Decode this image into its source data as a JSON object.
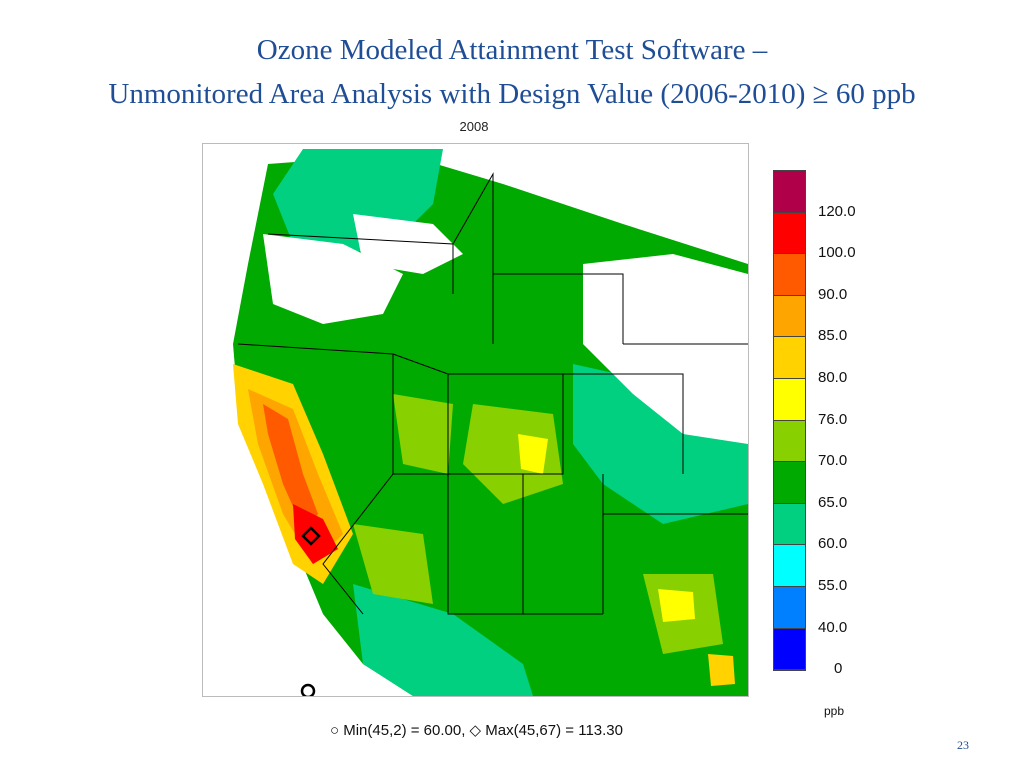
{
  "slide": {
    "title_line1": "Ozone Modeled Attainment Test Software –",
    "title_line2": "Unmonitored Area Analysis with Design Value (2006-2010) ≥ 60 ppb",
    "page_number": "23"
  },
  "map": {
    "year_label": "2008",
    "region": "Western United States",
    "min_max_text": "○ Min(45,2) = 60.00,  ◇ Max(45,67) = 113.30",
    "min_marker_icon": "circle-outline-icon",
    "max_marker_icon": "diamond-outline-icon"
  },
  "legend": {
    "unit": "ppb",
    "labels": [
      "120.0",
      "100.0",
      "90.0",
      "85.0",
      "80.0",
      "76.0",
      "70.0",
      "65.0",
      "60.0",
      "55.0",
      "40.0",
      "0"
    ],
    "colors": [
      "#b0004a",
      "#ff0000",
      "#ff5a00",
      "#ffa500",
      "#ffd200",
      "#ffff00",
      "#88d000",
      "#00aa00",
      "#00d080",
      "#00ffff",
      "#0080ff",
      "#0000ff"
    ]
  },
  "colors": {
    "title": "#1f4e96",
    "no_data": "#ffffff",
    "boundary": "#000000"
  }
}
